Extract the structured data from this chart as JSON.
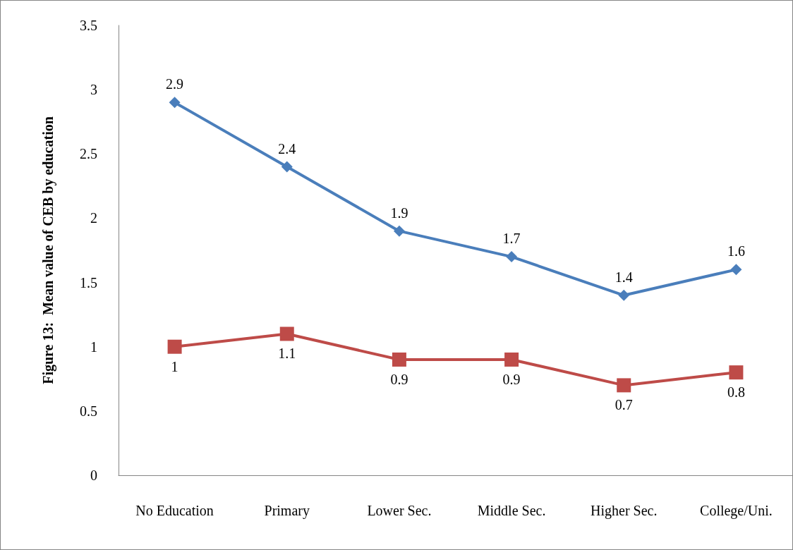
{
  "chart_data": {
    "type": "line",
    "ylabel": "Figure 13:  Mean value of CEB by education",
    "categories": [
      "No Education",
      "Primary",
      "Lower Sec.",
      "Middle Sec.",
      "Higher Sec.",
      "College/Uni."
    ],
    "series": [
      {
        "color": "#4a7ebb",
        "marker": "diamond",
        "values": [
          2.9,
          2.4,
          1.9,
          1.7,
          1.4,
          1.6
        ]
      },
      {
        "color": "#be4b48",
        "marker": "square",
        "values": [
          1,
          1.1,
          0.9,
          0.9,
          0.7,
          0.8
        ]
      }
    ],
    "ylim": [
      0,
      3.5
    ],
    "yticks": [
      0,
      0.5,
      1,
      1.5,
      2,
      2.5,
      3,
      3.5
    ],
    "grid": false,
    "data_labels": true
  }
}
